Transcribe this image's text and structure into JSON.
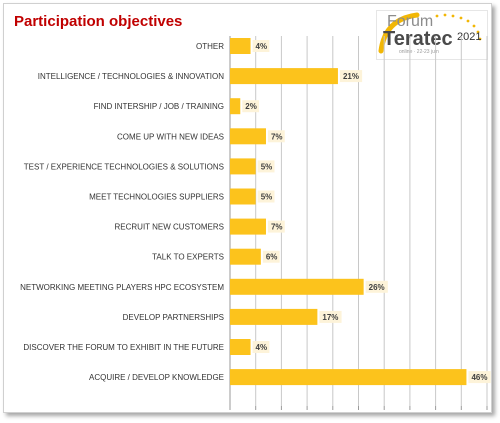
{
  "header": {
    "title": "Participation objectives"
  },
  "logo": {
    "word1": "Forum",
    "word2": "Teratec",
    "year": "2021",
    "tagline": "online · 22-23 juin"
  },
  "colors": {
    "bar": "#fcc31c",
    "title": "#c00000",
    "label_box": "#fdf3d9"
  },
  "chart_data": {
    "type": "bar",
    "orientation": "horizontal",
    "categories": [
      "OTHER",
      "INTELLIGENCE / TECHNOLOGIES & INNOVATION",
      "FIND INTERSHIP / JOB / TRAINING",
      "COME UP WITH NEW IDEAS",
      "TEST / EXPERIENCE TECHNOLOGIES & SOLUTIONS",
      "MEET TECHNOLOGIES SUPPLIERS",
      "RECRUIT NEW CUSTOMERS",
      "TALK TO EXPERTS",
      "NETWORKING MEETING PLAYERS HPC ECOSYSTEM",
      "DEVELOP PARTNERSHIPS",
      "DISCOVER THE FORUM TO EXHIBIT IN THE FUTURE",
      "ACQUIRE / DEVELOP KNOWLEDGE"
    ],
    "values": [
      4,
      21,
      2,
      7,
      5,
      5,
      7,
      6,
      26,
      17,
      4,
      46
    ],
    "value_labels": [
      "4%",
      "21%",
      "2%",
      "7%",
      "5%",
      "5%",
      "7%",
      "6%",
      "26%",
      "17%",
      "4%",
      "46%"
    ],
    "xlim": [
      0,
      50
    ],
    "grid": true,
    "legend": "none"
  }
}
